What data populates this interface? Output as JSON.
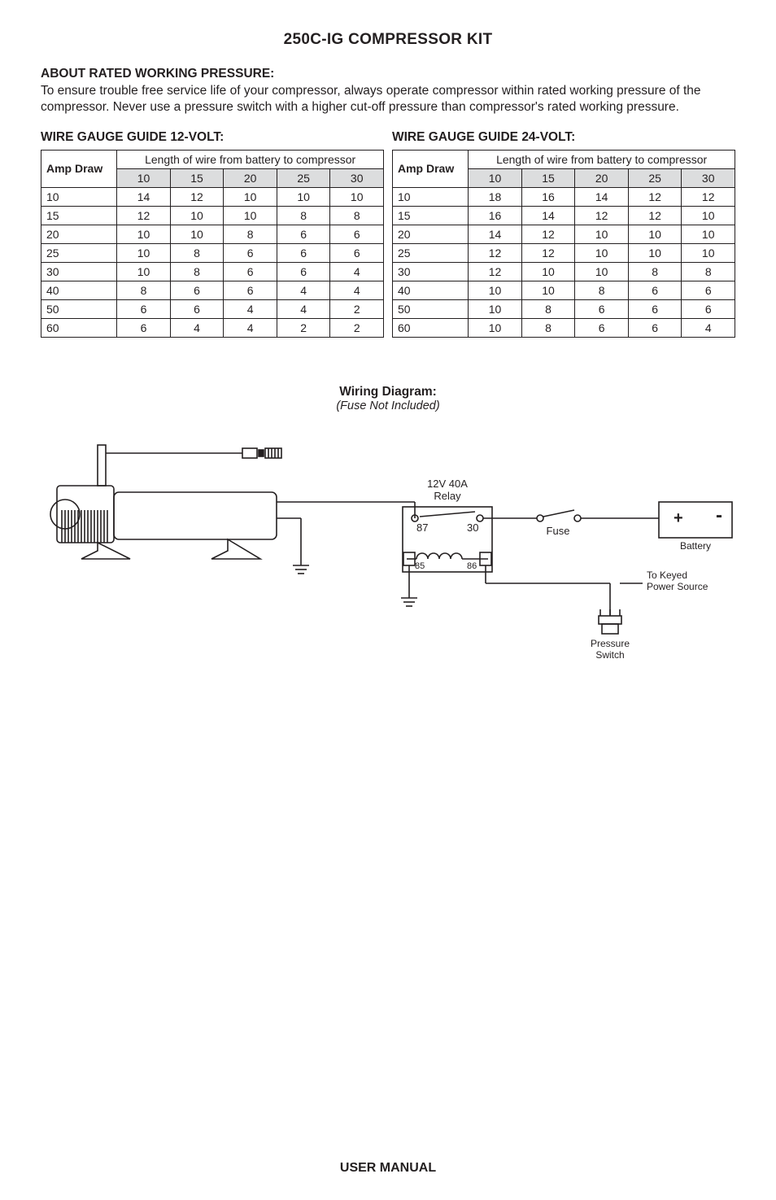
{
  "doc_title": "250C-IG COMPRESSOR KIT",
  "about_heading": "ABOUT RATED WORKING PRESSURE:",
  "about_text": "To ensure trouble free service life of your compressor, always operate compressor within rated working pressure of the compressor.  Never use a pressure switch with a higher cut-off pressure than compressor's rated working pressure.",
  "guide12_heading": "WIRE GAUGE GUIDE 12-VOLT:",
  "guide24_heading": "WIRE GAUGE GUIDE 24-VOLT:",
  "amp_draw_label": "Amp Draw",
  "length_label": "Length of wire from battery to compressor",
  "length_cols": [
    "10",
    "15",
    "20",
    "25",
    "30"
  ],
  "table12": {
    "rows": [
      {
        "amp": "10",
        "vals": [
          "14",
          "12",
          "10",
          "10",
          "10"
        ]
      },
      {
        "amp": "15",
        "vals": [
          "12",
          "10",
          "10",
          "8",
          "8"
        ]
      },
      {
        "amp": "20",
        "vals": [
          "10",
          "10",
          "8",
          "6",
          "6"
        ]
      },
      {
        "amp": "25",
        "vals": [
          "10",
          "8",
          "6",
          "6",
          "6"
        ]
      },
      {
        "amp": "30",
        "vals": [
          "10",
          "8",
          "6",
          "6",
          "4"
        ]
      },
      {
        "amp": "40",
        "vals": [
          "8",
          "6",
          "6",
          "4",
          "4"
        ]
      },
      {
        "amp": "50",
        "vals": [
          "6",
          "6",
          "4",
          "4",
          "2"
        ]
      },
      {
        "amp": "60",
        "vals": [
          "6",
          "4",
          "4",
          "2",
          "2"
        ]
      }
    ]
  },
  "table24": {
    "rows": [
      {
        "amp": "10",
        "vals": [
          "18",
          "16",
          "14",
          "12",
          "12"
        ]
      },
      {
        "amp": "15",
        "vals": [
          "16",
          "14",
          "12",
          "12",
          "10"
        ]
      },
      {
        "amp": "20",
        "vals": [
          "14",
          "12",
          "10",
          "10",
          "10"
        ]
      },
      {
        "amp": "25",
        "vals": [
          "12",
          "12",
          "10",
          "10",
          "10"
        ]
      },
      {
        "amp": "30",
        "vals": [
          "12",
          "10",
          "10",
          "8",
          "8"
        ]
      },
      {
        "amp": "40",
        "vals": [
          "10",
          "10",
          "8",
          "6",
          "6"
        ]
      },
      {
        "amp": "50",
        "vals": [
          "10",
          "8",
          "6",
          "6",
          "6"
        ]
      },
      {
        "amp": "60",
        "vals": [
          "10",
          "8",
          "6",
          "6",
          "4"
        ]
      }
    ]
  },
  "diagram_title": "Wiring Diagram:",
  "diagram_subtitle": "(Fuse Not Included)",
  "diagram": {
    "relay_label": "12V  40A\nRelay",
    "relay_87": "87",
    "relay_30": "30",
    "relay_85": "85",
    "relay_86": "86",
    "fuse_label": "Fuse",
    "battery_label": "Battery",
    "battery_plus": "+",
    "battery_minus": "-",
    "to_keyed_label": "To Keyed\nPower Source",
    "pressure_switch_label": "Pressure\nSwitch",
    "colors": {
      "stroke": "#231f20",
      "fill_none": "none",
      "bg": "#ffffff"
    }
  },
  "footer_text": "USER MANUAL"
}
